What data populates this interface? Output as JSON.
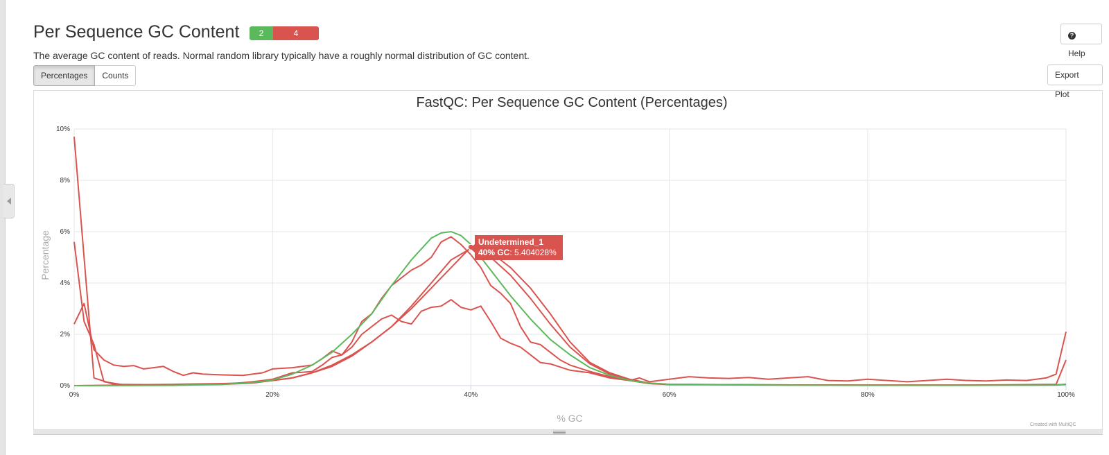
{
  "section": {
    "title": "Per Sequence GC Content",
    "badge_pass": "2",
    "badge_fail": "4",
    "description": "The average GC content of reads. Normal random library typically have a roughly normal distribution of GC content."
  },
  "buttons": {
    "help": "Help",
    "percentages": "Percentages",
    "counts": "Counts",
    "export": "Export Plot"
  },
  "tooltip": {
    "series": "Undetermined_1",
    "label": "40% GC",
    "value": ": 5.404028%"
  },
  "credits": "Created with MultiQC",
  "colors": {
    "pass": "#5cb85c",
    "fail": "#d9534f"
  },
  "chart_data": {
    "type": "line",
    "title": "FastQC: Per Sequence GC Content (Percentages)",
    "xlabel": "% GC",
    "ylabel": "Percentage",
    "xlim": [
      0,
      100
    ],
    "ylim": [
      0,
      10
    ],
    "x_ticks": [
      "0%",
      "20%",
      "40%",
      "60%",
      "80%",
      "100%"
    ],
    "y_ticks": [
      "0%",
      "2%",
      "4%",
      "6%",
      "8%",
      "10%"
    ],
    "grid": true,
    "series": [
      {
        "color": "#d9534f",
        "points": [
          [
            0,
            9.7
          ],
          [
            1,
            5.0
          ],
          [
            2,
            0.3
          ],
          [
            4,
            0.05
          ],
          [
            10,
            0.03
          ],
          [
            15,
            0.05
          ],
          [
            18,
            0.1
          ],
          [
            20,
            0.2
          ],
          [
            22,
            0.3
          ],
          [
            24,
            0.5
          ],
          [
            26,
            0.8
          ],
          [
            28,
            1.2
          ],
          [
            30,
            1.7
          ],
          [
            32,
            2.3
          ],
          [
            34,
            3.0
          ],
          [
            36,
            3.8
          ],
          [
            38,
            4.6
          ],
          [
            40,
            5.4
          ],
          [
            42,
            5.2
          ],
          [
            44,
            4.6
          ],
          [
            46,
            3.8
          ],
          [
            48,
            2.8
          ],
          [
            50,
            1.7
          ],
          [
            52,
            0.9
          ],
          [
            54,
            0.5
          ],
          [
            56,
            0.25
          ],
          [
            58,
            0.1
          ],
          [
            60,
            0.05
          ],
          [
            70,
            0.03
          ],
          [
            80,
            0.02
          ],
          [
            90,
            0.02
          ],
          [
            99,
            0.03
          ],
          [
            100,
            0.05
          ]
        ]
      },
      {
        "color": "#d9534f",
        "points": [
          [
            0,
            5.6
          ],
          [
            1,
            2.5
          ],
          [
            2,
            1.6
          ],
          [
            3,
            0.15
          ],
          [
            5,
            0.03
          ],
          [
            10,
            0.05
          ],
          [
            15,
            0.08
          ],
          [
            18,
            0.12
          ],
          [
            20,
            0.2
          ],
          [
            22,
            0.3
          ],
          [
            24,
            0.5
          ],
          [
            26,
            0.75
          ],
          [
            28,
            1.15
          ],
          [
            30,
            1.7
          ],
          [
            32,
            2.3
          ],
          [
            34,
            3.1
          ],
          [
            36,
            4.0
          ],
          [
            38,
            4.9
          ],
          [
            40,
            5.35
          ],
          [
            42,
            5.0
          ],
          [
            44,
            4.3
          ],
          [
            46,
            3.4
          ],
          [
            48,
            2.4
          ],
          [
            50,
            1.5
          ],
          [
            52,
            0.85
          ],
          [
            54,
            0.45
          ],
          [
            56,
            0.2
          ],
          [
            58,
            0.08
          ],
          [
            60,
            0.04
          ],
          [
            70,
            0.03
          ],
          [
            80,
            0.02
          ],
          [
            90,
            0.02
          ],
          [
            99,
            0.03
          ],
          [
            100,
            0.05
          ]
        ]
      },
      {
        "color": "#d9534f",
        "points": [
          [
            0,
            2.4
          ],
          [
            1,
            3.2
          ],
          [
            2,
            1.4
          ],
          [
            3,
            1.0
          ],
          [
            4,
            0.8
          ],
          [
            5,
            0.75
          ],
          [
            6,
            0.78
          ],
          [
            7,
            0.65
          ],
          [
            8,
            0.7
          ],
          [
            9,
            0.75
          ],
          [
            10,
            0.55
          ],
          [
            11,
            0.4
          ],
          [
            12,
            0.5
          ],
          [
            13,
            0.45
          ],
          [
            15,
            0.42
          ],
          [
            17,
            0.4
          ],
          [
            18,
            0.45
          ],
          [
            19,
            0.5
          ],
          [
            20,
            0.65
          ],
          [
            22,
            0.7
          ],
          [
            24,
            0.8
          ],
          [
            25,
            1.05
          ],
          [
            26,
            1.35
          ],
          [
            27,
            1.2
          ],
          [
            28,
            1.7
          ],
          [
            29,
            2.5
          ],
          [
            30,
            2.8
          ],
          [
            31,
            3.4
          ],
          [
            32,
            3.9
          ],
          [
            33,
            4.2
          ],
          [
            34,
            4.5
          ],
          [
            35,
            4.7
          ],
          [
            36,
            5.0
          ],
          [
            37,
            5.6
          ],
          [
            38,
            5.8
          ],
          [
            39,
            5.5
          ],
          [
            40,
            5.1
          ],
          [
            41,
            4.6
          ],
          [
            42,
            3.9
          ],
          [
            43,
            3.6
          ],
          [
            44,
            3.2
          ],
          [
            45,
            2.3
          ],
          [
            46,
            1.7
          ],
          [
            47,
            1.6
          ],
          [
            48,
            1.3
          ],
          [
            49,
            1.0
          ],
          [
            50,
            0.8
          ],
          [
            52,
            0.55
          ],
          [
            54,
            0.35
          ],
          [
            56,
            0.2
          ],
          [
            57,
            0.3
          ],
          [
            58,
            0.15
          ],
          [
            60,
            0.25
          ],
          [
            62,
            0.35
          ],
          [
            64,
            0.3
          ],
          [
            66,
            0.28
          ],
          [
            68,
            0.32
          ],
          [
            70,
            0.25
          ],
          [
            72,
            0.3
          ],
          [
            74,
            0.35
          ],
          [
            76,
            0.2
          ],
          [
            78,
            0.18
          ],
          [
            80,
            0.25
          ],
          [
            82,
            0.2
          ],
          [
            84,
            0.15
          ],
          [
            86,
            0.2
          ],
          [
            88,
            0.25
          ],
          [
            90,
            0.2
          ],
          [
            92,
            0.18
          ],
          [
            94,
            0.22
          ],
          [
            96,
            0.2
          ],
          [
            98,
            0.3
          ],
          [
            99,
            0.45
          ],
          [
            100,
            2.1
          ]
        ]
      },
      {
        "color": "#d9534f",
        "points": [
          [
            0,
            0.0
          ],
          [
            5,
            0.02
          ],
          [
            10,
            0.03
          ],
          [
            14,
            0.05
          ],
          [
            16,
            0.08
          ],
          [
            18,
            0.15
          ],
          [
            20,
            0.25
          ],
          [
            22,
            0.5
          ],
          [
            23,
            0.52
          ],
          [
            24,
            0.55
          ],
          [
            25,
            0.8
          ],
          [
            26,
            1.1
          ],
          [
            27,
            1.2
          ],
          [
            28,
            1.5
          ],
          [
            29,
            2.0
          ],
          [
            30,
            2.3
          ],
          [
            31,
            2.6
          ],
          [
            32,
            2.75
          ],
          [
            33,
            2.5
          ],
          [
            34,
            2.4
          ],
          [
            35,
            2.9
          ],
          [
            36,
            3.05
          ],
          [
            37,
            3.1
          ],
          [
            38,
            3.35
          ],
          [
            39,
            3.05
          ],
          [
            40,
            2.95
          ],
          [
            41,
            3.1
          ],
          [
            42,
            2.5
          ],
          [
            43,
            1.85
          ],
          [
            44,
            1.65
          ],
          [
            45,
            1.5
          ],
          [
            46,
            1.2
          ],
          [
            47,
            0.9
          ],
          [
            48,
            0.85
          ],
          [
            50,
            0.6
          ],
          [
            52,
            0.5
          ],
          [
            54,
            0.3
          ],
          [
            56,
            0.2
          ],
          [
            58,
            0.08
          ],
          [
            60,
            0.05
          ],
          [
            70,
            0.03
          ],
          [
            80,
            0.02
          ],
          [
            90,
            0.02
          ],
          [
            99,
            0.05
          ],
          [
            100,
            1.0
          ]
        ]
      },
      {
        "color": "#5cb85c",
        "points": [
          [
            0,
            0.0
          ],
          [
            10,
            0.01
          ],
          [
            15,
            0.05
          ],
          [
            18,
            0.12
          ],
          [
            20,
            0.22
          ],
          [
            22,
            0.45
          ],
          [
            24,
            0.8
          ],
          [
            26,
            1.3
          ],
          [
            28,
            2.0
          ],
          [
            30,
            2.8
          ],
          [
            32,
            3.9
          ],
          [
            34,
            4.9
          ],
          [
            36,
            5.75
          ],
          [
            37,
            5.95
          ],
          [
            38,
            6.0
          ],
          [
            39,
            5.85
          ],
          [
            40,
            5.5
          ],
          [
            41,
            5.0
          ],
          [
            42,
            4.5
          ],
          [
            44,
            3.5
          ],
          [
            46,
            2.6
          ],
          [
            48,
            1.8
          ],
          [
            50,
            1.2
          ],
          [
            52,
            0.7
          ],
          [
            54,
            0.4
          ],
          [
            56,
            0.2
          ],
          [
            58,
            0.1
          ],
          [
            60,
            0.05
          ],
          [
            70,
            0.02
          ],
          [
            80,
            0.01
          ],
          [
            90,
            0.01
          ],
          [
            99,
            0.02
          ],
          [
            100,
            0.05
          ]
        ]
      }
    ]
  }
}
